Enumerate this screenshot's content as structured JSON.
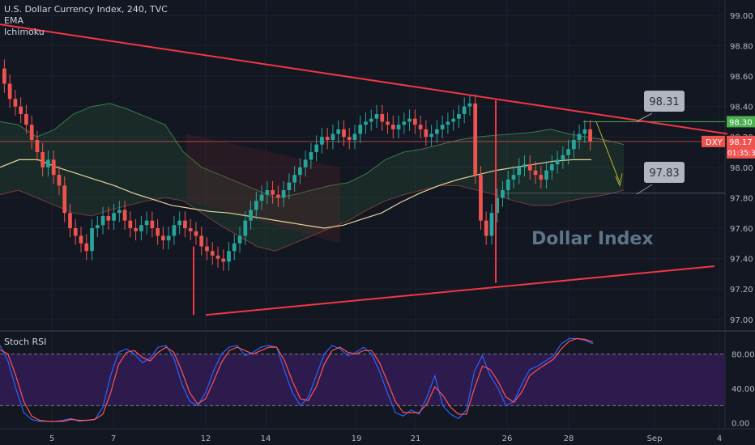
{
  "legend": {
    "title": "U.S. Dollar Currency Index, 240, TVC",
    "ema": "EMA",
    "ichimoku": "Ichimoku"
  },
  "rsi_title": "Stoch RSI",
  "watermark": "Dollar Index",
  "price_labels": {
    "symbol": "DXY",
    "last": "98.17",
    "countdown": "01:35:34",
    "green_level": "98.30"
  },
  "callouts": [
    "98.31",
    "97.83"
  ],
  "colors": {
    "background": "#131722",
    "up": "#26a69a",
    "down": "#ef5350",
    "trendline": "#f23645",
    "ema": "#e7d49a",
    "rsi_band": "#2d1b4e",
    "rsi_k": "#2962ff",
    "rsi_d": "#ff5252"
  },
  "chart_data": [
    {
      "type": "candlestick",
      "title": "U.S. Dollar Currency Index, 240, TVC",
      "indicators": [
        "EMA",
        "Ichimoku"
      ],
      "x_ticks": [
        "5",
        "7",
        "12",
        "14",
        "19",
        "21",
        "26",
        "28",
        "Sep",
        "4"
      ],
      "y_ticks": [
        97.0,
        97.2,
        97.4,
        97.6,
        97.8,
        98.0,
        98.2,
        98.4,
        98.6,
        98.8,
        99.0
      ],
      "ylim": [
        96.93,
        99.1
      ],
      "close": [
        98.55,
        98.45,
        98.4,
        98.35,
        98.28,
        98.18,
        98.1,
        98.0,
        98.05,
        97.95,
        97.88,
        97.7,
        97.6,
        97.55,
        97.5,
        97.45,
        97.6,
        97.62,
        97.68,
        97.65,
        97.7,
        97.72,
        97.65,
        97.6,
        97.58,
        97.62,
        97.65,
        97.6,
        97.55,
        97.52,
        97.55,
        97.62,
        97.65,
        97.6,
        97.58,
        97.55,
        97.48,
        97.45,
        97.42,
        97.4,
        97.38,
        97.45,
        97.5,
        97.55,
        97.65,
        97.72,
        97.78,
        97.82,
        97.85,
        97.82,
        97.8,
        97.85,
        97.9,
        97.95,
        98.0,
        98.05,
        98.1,
        98.15,
        98.2,
        98.18,
        98.22,
        98.25,
        98.2,
        98.18,
        98.22,
        98.28,
        98.3,
        98.32,
        98.35,
        98.3,
        98.28,
        98.25,
        98.28,
        98.3,
        98.32,
        98.28,
        98.25,
        98.2,
        98.22,
        98.25,
        98.28,
        98.3,
        98.32,
        98.35,
        98.4,
        98.42,
        97.95,
        97.65,
        97.55,
        97.7,
        97.8,
        97.85,
        97.92,
        97.95,
        98.0,
        98.02,
        97.98,
        97.95,
        97.92,
        97.98,
        98.02,
        98.05,
        98.08,
        98.12,
        98.18,
        98.22,
        98.25,
        98.17
      ],
      "ema": [
        98.0,
        98.05,
        98.05,
        98.0,
        97.96,
        97.92,
        97.88,
        97.83,
        97.79,
        97.75,
        97.73,
        97.71,
        97.7,
        97.68,
        97.66,
        97.64,
        97.62,
        97.6,
        97.62,
        97.66,
        97.7,
        97.77,
        97.83,
        97.88,
        97.92,
        97.95,
        97.98,
        98.0,
        98.02,
        98.04,
        98.05,
        98.05
      ],
      "trendlines": [
        {
          "from": [
            "start",
            98.94
          ],
          "to": [
            "Sep",
            98.22
          ]
        },
        {
          "from": [
            "12",
            97.03
          ],
          "to": [
            "4",
            97.35
          ]
        }
      ],
      "horizontal_levels": [
        98.3,
        98.17,
        97.83
      ],
      "annotations": [
        {
          "text": "98.31",
          "price": 98.31
        },
        {
          "text": "97.83",
          "price": 97.83
        },
        {
          "text": "Dollar Index"
        }
      ]
    },
    {
      "type": "line",
      "title": "Stoch RSI",
      "y_ticks": [
        0.0,
        40.0,
        80.0
      ],
      "ylim": [
        -5,
        105
      ],
      "band": [
        20,
        80
      ],
      "series": [
        {
          "values": [
            90,
            72,
            40,
            12,
            4,
            2,
            2,
            2,
            3,
            5,
            2,
            3,
            4,
            18,
            55,
            82,
            86,
            80,
            70,
            75,
            88,
            90,
            75,
            45,
            25,
            20,
            35,
            60,
            80,
            88,
            90,
            78,
            82,
            88,
            90,
            88,
            60,
            35,
            20,
            30,
            55,
            80,
            90,
            86,
            78,
            82,
            88,
            80,
            60,
            35,
            12,
            8,
            15,
            10,
            30,
            55,
            20,
            10,
            5,
            15,
            60,
            78,
            55,
            40,
            20,
            25,
            45,
            62,
            66,
            72,
            78,
            92,
            98,
            98,
            96,
            92
          ]
        },
        {
          "values": [
            85,
            80,
            55,
            25,
            8,
            3,
            2,
            2,
            2,
            4,
            3,
            3,
            4,
            10,
            35,
            68,
            82,
            84,
            76,
            72,
            82,
            88,
            82,
            60,
            35,
            22,
            28,
            48,
            70,
            84,
            88,
            84,
            80,
            84,
            88,
            88,
            72,
            48,
            28,
            26,
            42,
            68,
            84,
            88,
            82,
            80,
            84,
            84,
            70,
            48,
            25,
            12,
            12,
            12,
            22,
            42,
            32,
            18,
            10,
            10,
            40,
            66,
            62,
            48,
            30,
            24,
            36,
            55,
            62,
            68,
            74,
            86,
            95,
            98,
            97,
            94
          ]
        }
      ]
    }
  ]
}
